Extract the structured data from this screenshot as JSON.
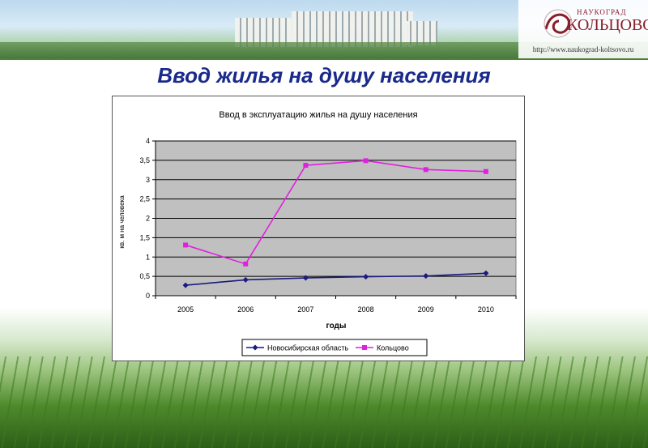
{
  "slide": {
    "title": "Ввод жилья на душу населения"
  },
  "logo": {
    "top_text": "НАУКОГРАД",
    "name": "КОЛЬЦОВО",
    "url": "http://www.naukograd-koltsovo.ru"
  },
  "chart_data": {
    "type": "line",
    "title": "Ввод в эксплуатацию жилья на душу населения",
    "xlabel": "годы",
    "ylabel": "кв. м на человека",
    "categories": [
      "2005",
      "2006",
      "2007",
      "2008",
      "2009",
      "2010"
    ],
    "y_ticks": [
      "0",
      "0,5",
      "1",
      "1,5",
      "2",
      "2,5",
      "3",
      "3,5",
      "4"
    ],
    "ylim": [
      0,
      4
    ],
    "grid": true,
    "legend_position": "bottom",
    "series": [
      {
        "name": "Новосибирская область",
        "color": "#1a1a80",
        "marker": "diamond",
        "values": [
          0.27,
          0.41,
          0.46,
          0.49,
          0.51,
          0.58
        ]
      },
      {
        "name": "Кольцово",
        "color": "#e020e0",
        "marker": "square",
        "values": [
          1.31,
          0.82,
          3.37,
          3.49,
          3.26,
          3.21
        ]
      }
    ]
  }
}
